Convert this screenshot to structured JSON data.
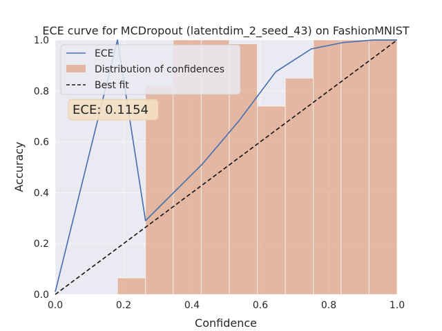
{
  "chart_data": {
    "type": "bar+line",
    "title": "ECE curve for MCDropout (latentdim_2_seed_43) on FashionMNIST",
    "xlabel": "Confidence",
    "ylabel": "Accuracy",
    "xlim": [
      0.0,
      1.0
    ],
    "ylim": [
      0.0,
      1.0
    ],
    "xticks": [
      "0.0",
      "0.2",
      "0.4",
      "0.6",
      "0.8",
      "1.0"
    ],
    "yticks": [
      "0.0",
      "0.2",
      "0.4",
      "0.6",
      "0.8",
      "1.0"
    ],
    "grid": true,
    "legend_position": "top-left",
    "annotation": "ECE: 0.1154",
    "histogram": {
      "name": "Distribution of confidences",
      "color": "#dd8452",
      "bins": [
        {
          "x0": 0.182,
          "x1": 0.264,
          "value": 0.065
        },
        {
          "x0": 0.264,
          "x1": 0.345,
          "value": 0.82
        },
        {
          "x0": 0.345,
          "x1": 0.427,
          "value": 1.0
        },
        {
          "x0": 0.427,
          "x1": 0.509,
          "value": 1.0
        },
        {
          "x0": 0.509,
          "x1": 0.591,
          "value": 0.985
        },
        {
          "x0": 0.591,
          "x1": 0.673,
          "value": 0.74
        },
        {
          "x0": 0.673,
          "x1": 0.755,
          "value": 0.85
        },
        {
          "x0": 0.755,
          "x1": 0.836,
          "value": 1.0
        },
        {
          "x0": 0.836,
          "x1": 0.918,
          "value": 1.0
        },
        {
          "x0": 0.918,
          "x1": 1.0,
          "value": 1.0
        }
      ]
    },
    "series": [
      {
        "name": "ECE",
        "color": "#4c72b0",
        "style": "solid",
        "x": [
          0.0,
          0.182,
          0.264,
          0.432,
          0.536,
          0.645,
          0.749,
          0.842,
          0.93,
          1.0
        ],
        "y": [
          0.01,
          1.0,
          0.29,
          0.515,
          0.68,
          0.875,
          0.965,
          0.99,
          1.0,
          1.0
        ]
      },
      {
        "name": "Best fit",
        "color": "#1a1a1a",
        "style": "dashed",
        "x": [
          0.0,
          1.0
        ],
        "y": [
          0.0,
          1.0
        ]
      }
    ]
  }
}
